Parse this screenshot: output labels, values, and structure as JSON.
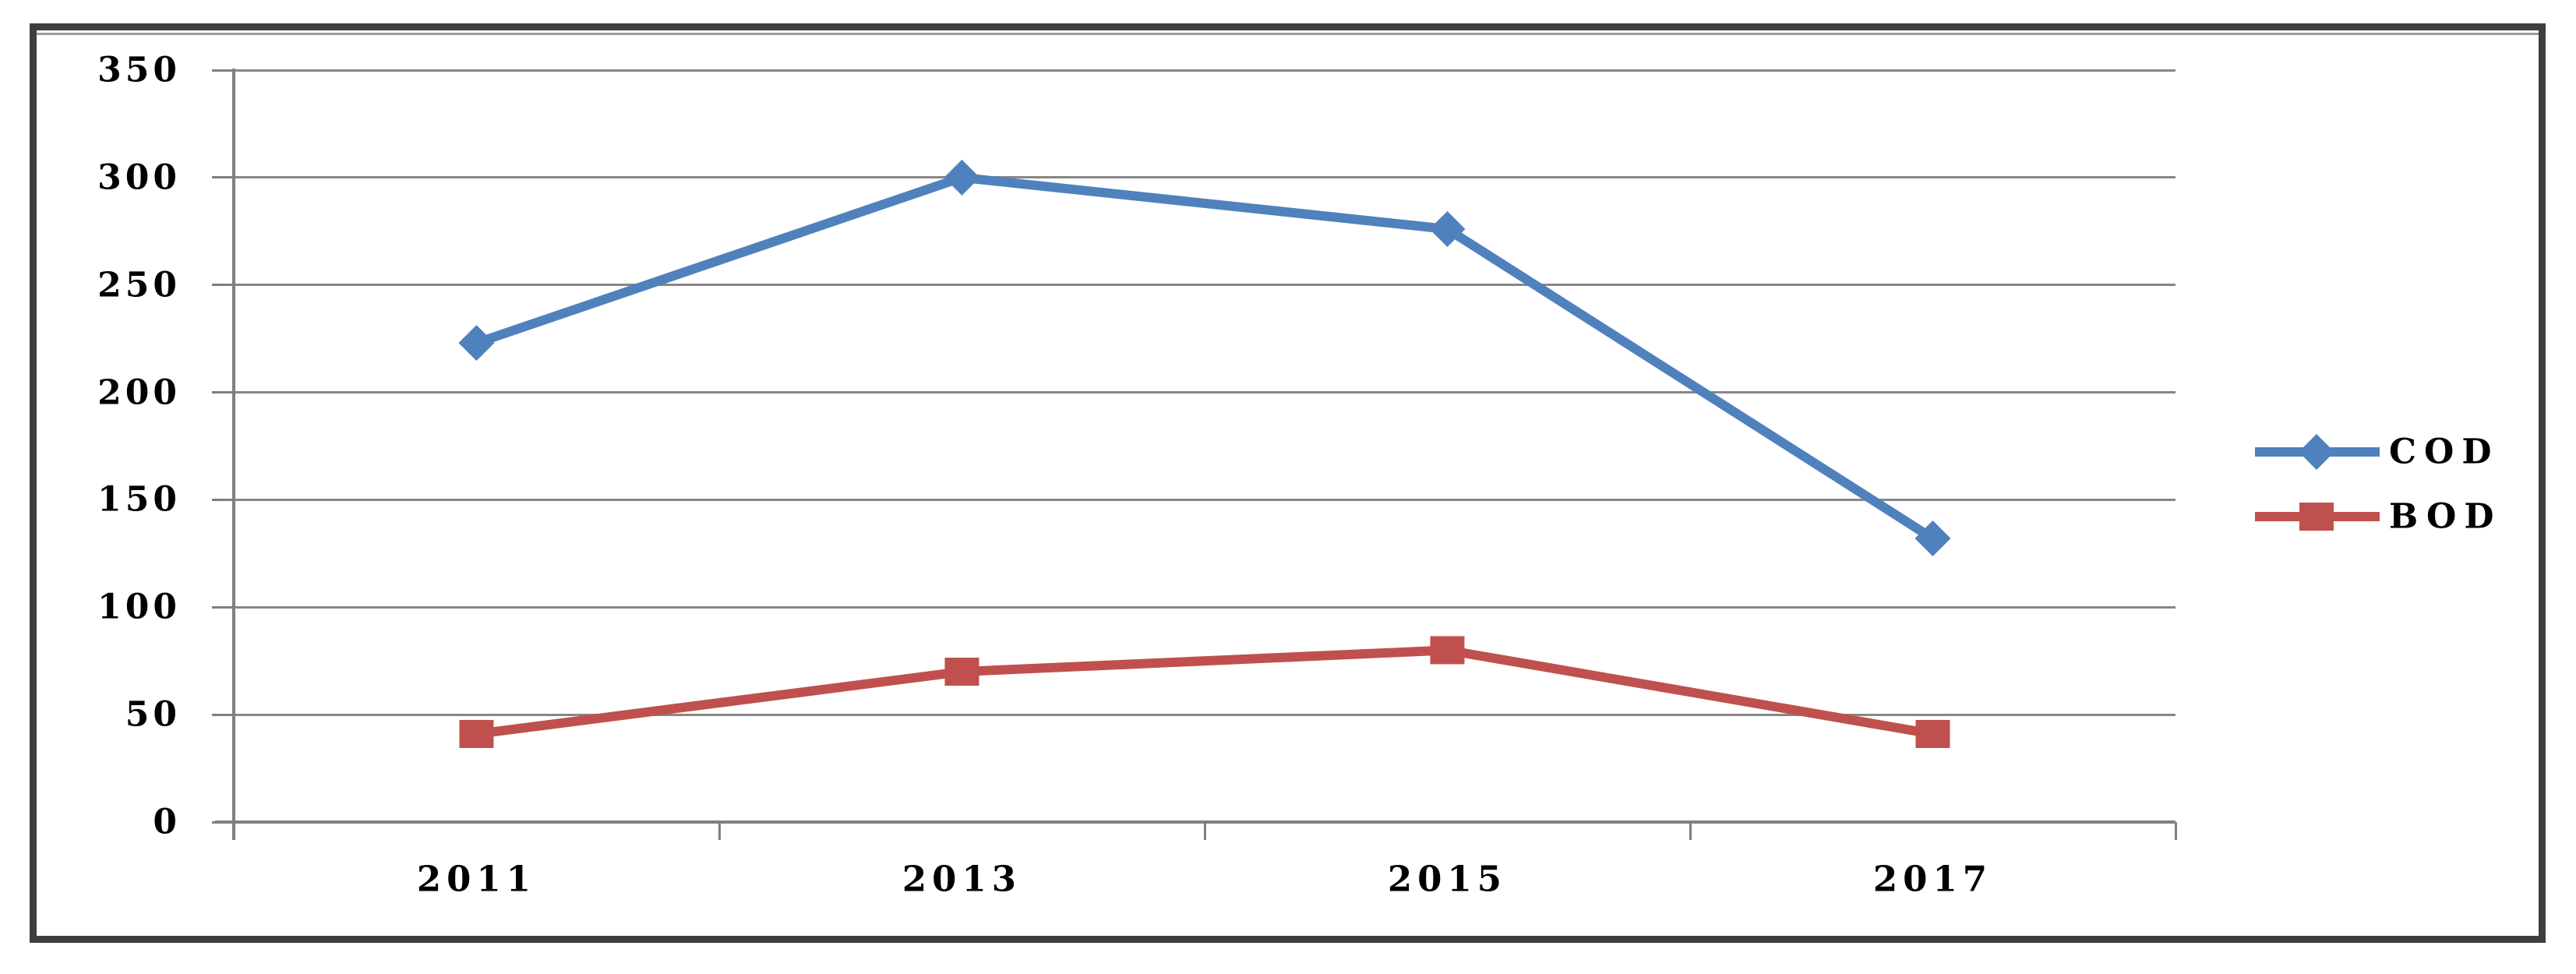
{
  "chart_data": {
    "type": "line",
    "title": "",
    "xlabel": "",
    "ylabel": "",
    "categories": [
      "2011",
      "2013",
      "2015",
      "2017"
    ],
    "series": [
      {
        "name": "COD",
        "marker": "diamond",
        "color": "#4F81BD",
        "values": [
          223,
          300,
          276,
          132
        ]
      },
      {
        "name": "BOD",
        "marker": "square",
        "color": "#C0504D",
        "values": [
          41,
          70,
          80,
          41
        ]
      }
    ],
    "ylim": [
      0,
      350
    ],
    "yticks": [
      0,
      50,
      100,
      150,
      200,
      250,
      300,
      350
    ],
    "grid": true,
    "legend_position": "right-middle"
  },
  "colors": {
    "gridline": "#878787",
    "axis": "#7F7F7F",
    "frame": "#3E3E3E",
    "text": "#000000",
    "background": "#FFFFFF"
  }
}
